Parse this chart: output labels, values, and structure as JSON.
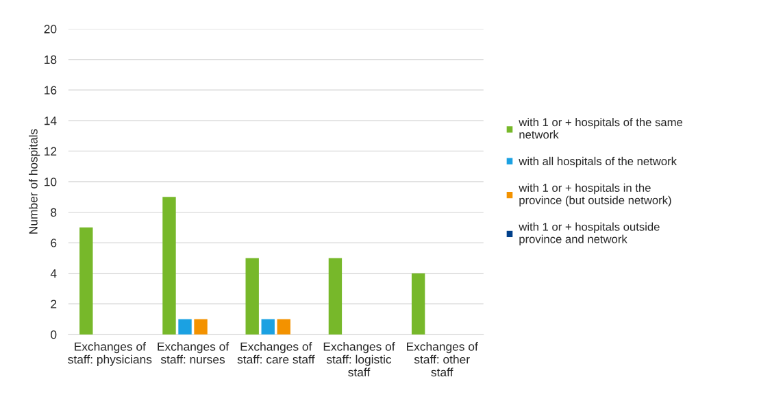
{
  "chart_data": {
    "type": "bar",
    "ylabel": "Number of hospitals",
    "categories": [
      "Exchanges of staff: physicians",
      "Exchanges of staff: nurses",
      "Exchanges of staff: care staff",
      "Exchanges of staff: logistic staff",
      "Exchanges of staff: other staff"
    ],
    "series": [
      {
        "name": "with 1 or + hospitals of the same network",
        "color": "#77b82a",
        "values": [
          7,
          9,
          5,
          5,
          4
        ]
      },
      {
        "name": "with all hospitals of the network",
        "color": "#1ba1e2",
        "values": [
          0,
          1,
          1,
          0,
          0
        ]
      },
      {
        "name": "with 1 or + hospitals in the province (but outside network)",
        "color": "#f39200",
        "values": [
          0,
          1,
          1,
          0,
          0
        ]
      },
      {
        "name": "with 1 or + hospitals outside province and network",
        "color": "#003f8a",
        "values": [
          0,
          0,
          0,
          0,
          0
        ]
      }
    ],
    "ylim": [
      0,
      20
    ],
    "yticks": [
      0,
      2,
      4,
      6,
      8,
      10,
      12,
      14,
      16,
      18,
      20
    ],
    "grid": "y",
    "legend": "right"
  }
}
